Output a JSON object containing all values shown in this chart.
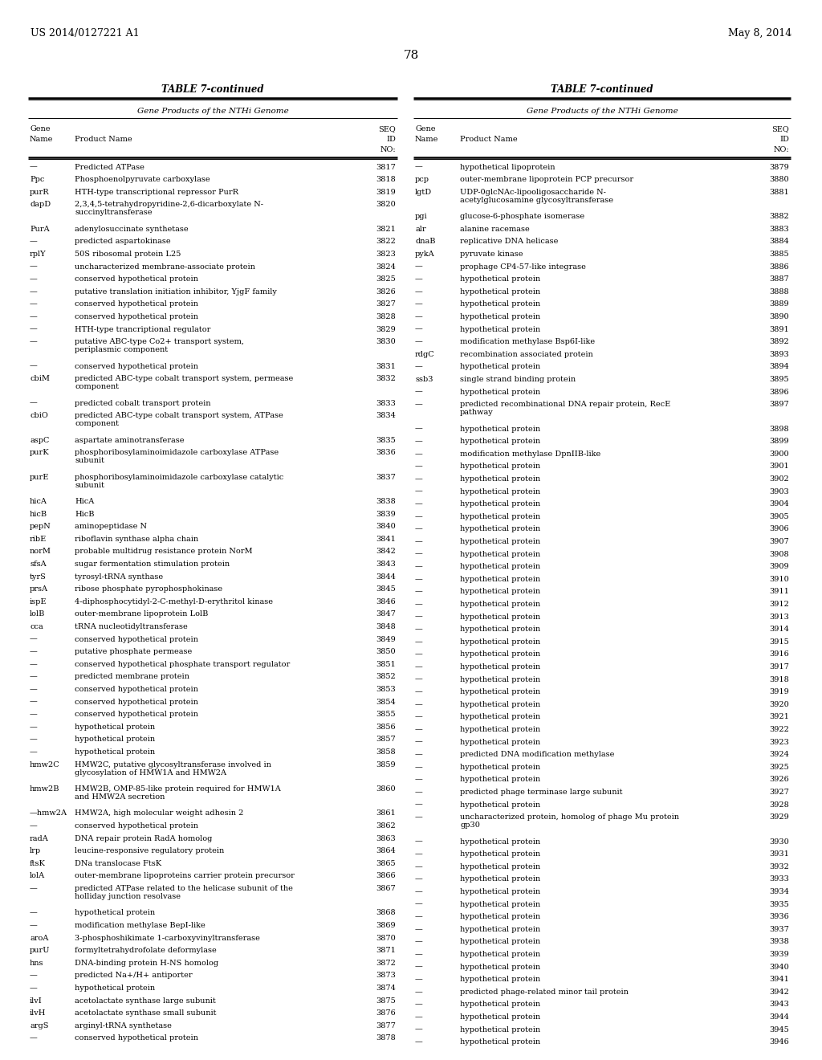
{
  "header_left": "US 2014/0127221 A1",
  "header_right": "May 8, 2014",
  "page_number": "78",
  "table_title": "TABLE 7-continued",
  "table_subtitle": "Gene Products of the NTHi Genome",
  "left_table": [
    [
      "—",
      "Predicted ATPase",
      "3817"
    ],
    [
      "Ppc",
      "Phosphoenolpyruvate carboxylase",
      "3818"
    ],
    [
      "purR",
      "HTH-type transcriptional repressor PurR",
      "3819"
    ],
    [
      "dapD",
      "2,3,4,5-tetrahydropyridine-2,6-dicarboxylate N-\nsuccinyltransferase",
      "3820"
    ],
    [
      "PurA",
      "adenylosuccinate synthetase",
      "3821"
    ],
    [
      "—",
      "predicted aspartokinase",
      "3822"
    ],
    [
      "rplY",
      "50S ribosomal protein L25",
      "3823"
    ],
    [
      "—",
      "uncharacterized membrane-associate protein",
      "3824"
    ],
    [
      "—",
      "conserved hypothetical protein",
      "3825"
    ],
    [
      "—",
      "putative translation initiation inhibitor, YjgF family",
      "3826"
    ],
    [
      "—",
      "conserved hypothetical protein",
      "3827"
    ],
    [
      "—",
      "conserved hypothetical protein",
      "3828"
    ],
    [
      "—",
      "HTH-type trancriptional regulator",
      "3829"
    ],
    [
      "—",
      "putative ABC-type Co2+ transport system,\nperiplasmic component",
      "3830"
    ],
    [
      "—",
      "conserved hypothetical protein",
      "3831"
    ],
    [
      "cbiM",
      "predicted ABC-type cobalt transport system, permease\ncomponent",
      "3832"
    ],
    [
      "—",
      "predicted cobalt transport protein",
      "3833"
    ],
    [
      "cbiO",
      "predicted ABC-type cobalt transport system, ATPase\ncomponent",
      "3834"
    ],
    [
      "aspC",
      "aspartate aminotransferase",
      "3835"
    ],
    [
      "purK",
      "phosphoribosylaminoimidazole carboxylase ATPase\nsubunit",
      "3836"
    ],
    [
      "purE",
      "phosphoribosylaminoimidazole carboxylase catalytic\nsubunit",
      "3837"
    ],
    [
      "hicA",
      "HicA",
      "3838"
    ],
    [
      "hicB",
      "HicB",
      "3839"
    ],
    [
      "pepN",
      "aminopeptidase N",
      "3840"
    ],
    [
      "ribE",
      "riboflavin synthase alpha chain",
      "3841"
    ],
    [
      "norM",
      "probable multidrug resistance protein NorM",
      "3842"
    ],
    [
      "sfsA",
      "sugar fermentation stimulation protein",
      "3843"
    ],
    [
      "tyrS",
      "tyrosyl-tRNA synthase",
      "3844"
    ],
    [
      "prsA",
      "ribose phosphate pyrophosphokinase",
      "3845"
    ],
    [
      "ispE",
      "4-diphosphocytidyl-2-C-methyl-D-erythritol kinase",
      "3846"
    ],
    [
      "lolB",
      "outer-membrane lipoprotein LolB",
      "3847"
    ],
    [
      "cca",
      "tRNA nucleotidyltransferase",
      "3848"
    ],
    [
      "—",
      "conserved hypothetical protein",
      "3849"
    ],
    [
      "—",
      "putative phosphate permease",
      "3850"
    ],
    [
      "—",
      "conserved hypothetical phosphate transport regulator",
      "3851"
    ],
    [
      "—",
      "predicted membrane protein",
      "3852"
    ],
    [
      "—",
      "conserved hypothetical protein",
      "3853"
    ],
    [
      "—",
      "conserved hypothetical protein",
      "3854"
    ],
    [
      "—",
      "conserved hypothetical protein",
      "3855"
    ],
    [
      "—",
      "hypothetical protein",
      "3856"
    ],
    [
      "—",
      "hypothetical protein",
      "3857"
    ],
    [
      "—",
      "hypothetical protein",
      "3858"
    ],
    [
      "hmw2C",
      "HMW2C, putative glycosyltransferase involved in\nglycosylation of HMW1A and HMW2A",
      "3859"
    ],
    [
      "hmw2B",
      "HMW2B, OMP-85-like protein required for HMW1A\nand HMW2A secretion",
      "3860"
    ],
    [
      "—hmw2A",
      "HMW2A, high molecular weight adhesin 2",
      "3861"
    ],
    [
      "—",
      "conserved hypothetical protein",
      "3862"
    ],
    [
      "radA",
      "DNA repair protein RadA homolog",
      "3863"
    ],
    [
      "lrp",
      "leucine-responsive regulatory protein",
      "3864"
    ],
    [
      "ftsK",
      "DNa translocase FtsK",
      "3865"
    ],
    [
      "lolA",
      "outer-membrane lipoproteins carrier protein precursor",
      "3866"
    ],
    [
      "—",
      "predicted ATPase related to the helicase subunit of the\nholliday junction resolvase",
      "3867"
    ],
    [
      "—",
      "hypothetical protein",
      "3868"
    ],
    [
      "—",
      "modification methylase BepI-like",
      "3869"
    ],
    [
      "aroA",
      "3-phosphoshikimate 1-carboxyvinyltransferase",
      "3870"
    ],
    [
      "purU",
      "formyltetrahydrofolate deformylase",
      "3871"
    ],
    [
      "hns",
      "DNA-binding protein H-NS homolog",
      "3872"
    ],
    [
      "—",
      "predicted Na+/H+ antiporter",
      "3873"
    ],
    [
      "—",
      "hypothetical protein",
      "3874"
    ],
    [
      "ilvI",
      "acetolactate synthase large subunit",
      "3875"
    ],
    [
      "ilvH",
      "acetolactate synthase small subunit",
      "3876"
    ],
    [
      "argS",
      "arginyl-tRNA synthetase",
      "3877"
    ],
    [
      "—",
      "conserved hypothetical protein",
      "3878"
    ]
  ],
  "right_table": [
    [
      "—",
      "hypothetical lipoprotein",
      "3879"
    ],
    [
      "pcp",
      "outer-membrane lipoprotein PCP precursor",
      "3880"
    ],
    [
      "lgtD",
      "UDP-0glcNAc-lipooligosaccharide N-\nacetylglucosamine glycosyltransferase",
      "3881"
    ],
    [
      "pgi",
      "glucose-6-phosphate isomerase",
      "3882"
    ],
    [
      "alr",
      "alanine racemase",
      "3883"
    ],
    [
      "dnaB",
      "replicative DNA helicase",
      "3884"
    ],
    [
      "pykA",
      "pyruvate kinase",
      "3885"
    ],
    [
      "—",
      "prophage CP4-57-like integrase",
      "3886"
    ],
    [
      "—",
      "hypothetical protein",
      "3887"
    ],
    [
      "—",
      "hypothetical protein",
      "3888"
    ],
    [
      "—",
      "hypothetical protein",
      "3889"
    ],
    [
      "—",
      "hypothetical protein",
      "3890"
    ],
    [
      "—",
      "hypothetical protein",
      "3891"
    ],
    [
      "—",
      "modification methylase Bsp6I-like",
      "3892"
    ],
    [
      "rdgC",
      "recombination associated protein",
      "3893"
    ],
    [
      "—",
      "hypothetical protein",
      "3894"
    ],
    [
      "ssb3",
      "single strand binding protein",
      "3895"
    ],
    [
      "—",
      "hypothetical protein",
      "3896"
    ],
    [
      "—",
      "predicted recombinational DNA repair protein, RecE\npathway",
      "3897"
    ],
    [
      "—",
      "hypothetical protein",
      "3898"
    ],
    [
      "—",
      "hypothetical protein",
      "3899"
    ],
    [
      "—",
      "modification methylase DpnIIB-like",
      "3900"
    ],
    [
      "—",
      "hypothetical protein",
      "3901"
    ],
    [
      "—",
      "hypothetical protein",
      "3902"
    ],
    [
      "—",
      "hypothetical protein",
      "3903"
    ],
    [
      "—",
      "hypothetical protein",
      "3904"
    ],
    [
      "—",
      "hypothetical protein",
      "3905"
    ],
    [
      "—",
      "hypothetical protein",
      "3906"
    ],
    [
      "—",
      "hypothetical protein",
      "3907"
    ],
    [
      "—",
      "hypothetical protein",
      "3908"
    ],
    [
      "—",
      "hypothetical protein",
      "3909"
    ],
    [
      "—",
      "hypothetical protein",
      "3910"
    ],
    [
      "—",
      "hypothetical protein",
      "3911"
    ],
    [
      "—",
      "hypothetical protein",
      "3912"
    ],
    [
      "—",
      "hypothetical protein",
      "3913"
    ],
    [
      "—",
      "hypothetical protein",
      "3914"
    ],
    [
      "—",
      "hypothetical protein",
      "3915"
    ],
    [
      "—",
      "hypothetical protein",
      "3916"
    ],
    [
      "—",
      "hypothetical protein",
      "3917"
    ],
    [
      "—",
      "hypothetical protein",
      "3918"
    ],
    [
      "—",
      "hypothetical protein",
      "3919"
    ],
    [
      "—",
      "hypothetical protein",
      "3920"
    ],
    [
      "—",
      "hypothetical protein",
      "3921"
    ],
    [
      "—",
      "hypothetical protein",
      "3922"
    ],
    [
      "—",
      "hypothetical protein",
      "3923"
    ],
    [
      "—",
      "predicted DNA modification methylase",
      "3924"
    ],
    [
      "—",
      "hypothetical protein",
      "3925"
    ],
    [
      "—",
      "hypothetical protein",
      "3926"
    ],
    [
      "—",
      "predicted phage terminase large subunit",
      "3927"
    ],
    [
      "—",
      "hypothetical protein",
      "3928"
    ],
    [
      "—",
      "uncharacterized protein, homolog of phage Mu protein\ngp30",
      "3929"
    ],
    [
      "—",
      "hypothetical protein",
      "3930"
    ],
    [
      "—",
      "hypothetical protein",
      "3931"
    ],
    [
      "—",
      "hypothetical protein",
      "3932"
    ],
    [
      "—",
      "hypothetical protein",
      "3933"
    ],
    [
      "—",
      "hypothetical protein",
      "3934"
    ],
    [
      "—",
      "hypothetical protein",
      "3935"
    ],
    [
      "—",
      "hypothetical protein",
      "3936"
    ],
    [
      "—",
      "hypothetical protein",
      "3937"
    ],
    [
      "—",
      "hypothetical protein",
      "3938"
    ],
    [
      "—",
      "hypothetical protein",
      "3939"
    ],
    [
      "—",
      "hypothetical protein",
      "3940"
    ],
    [
      "—",
      "hypothetical protein",
      "3941"
    ],
    [
      "—",
      "predicted phage-related minor tail protein",
      "3942"
    ],
    [
      "—",
      "hypothetical protein",
      "3943"
    ],
    [
      "—",
      "hypothetical protein",
      "3944"
    ],
    [
      "—",
      "hypothetical protein",
      "3945"
    ],
    [
      "—",
      "hypothetical protein",
      "3946"
    ]
  ]
}
